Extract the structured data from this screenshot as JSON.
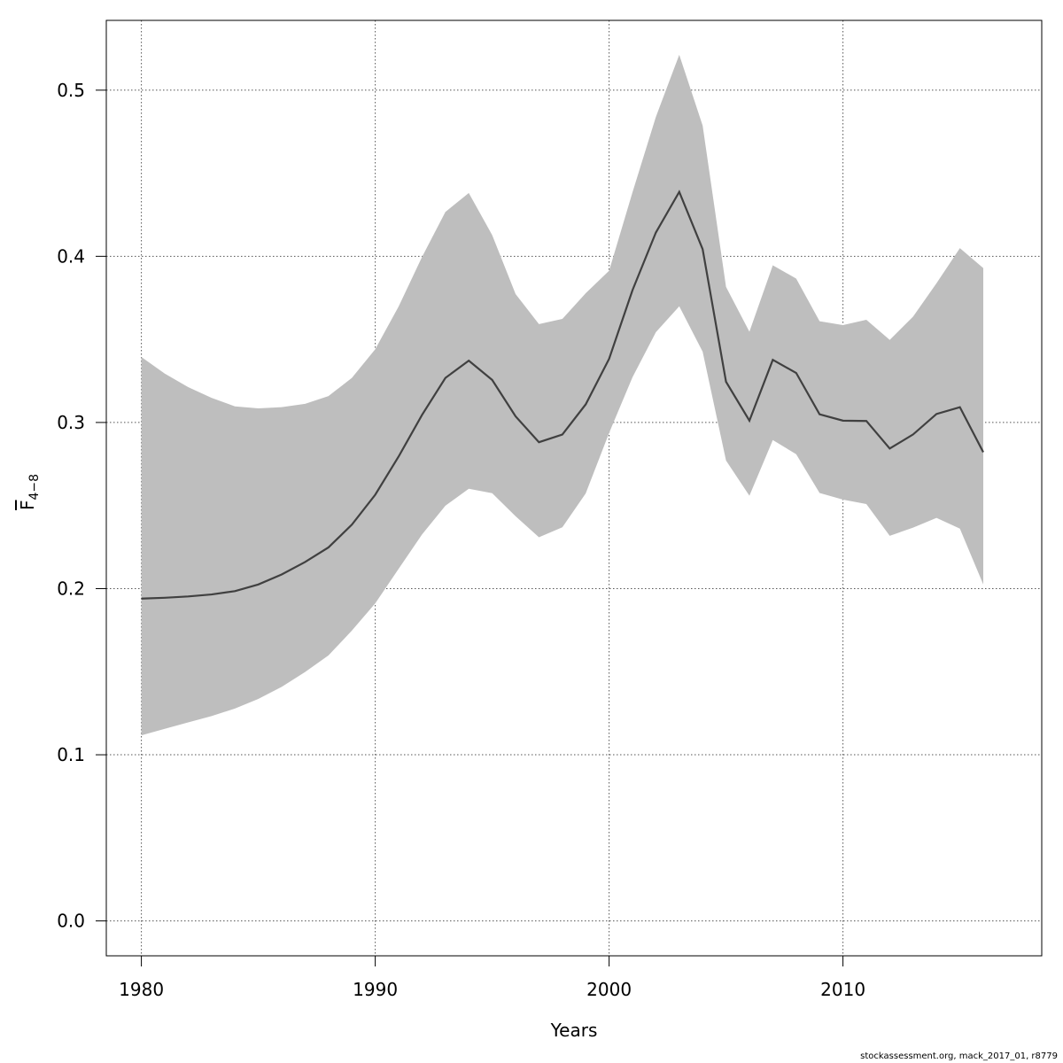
{
  "chart_data": {
    "type": "line",
    "title": "",
    "xlabel": "Years",
    "ylabel_base": "F",
    "ylabel_sub": "4−8",
    "xlim": [
      1978.5,
      2018.5
    ],
    "ylim": [
      -0.021,
      0.542
    ],
    "x_ticks": [
      1980,
      1990,
      2000,
      2010
    ],
    "y_ticks": [
      "0.0",
      "0.1",
      "0.2",
      "0.3",
      "0.4",
      "0.5"
    ],
    "grid": true,
    "colors": {
      "line": "#404040",
      "band": "#bebebe",
      "grid": "#555555"
    },
    "x": [
      1980,
      1981,
      1982,
      1983,
      1984,
      1985,
      1986,
      1987,
      1988,
      1989,
      1990,
      1991,
      1992,
      1993,
      1994,
      1995,
      1996,
      1997,
      1998,
      1999,
      2000,
      2001,
      2002,
      2003,
      2004,
      2005,
      2006,
      2007,
      2008,
      2009,
      2010,
      2011,
      2012,
      2013,
      2014,
      2015,
      2016
    ],
    "series": [
      {
        "values": [
          0.194,
          0.1945,
          0.1953,
          0.1965,
          0.1985,
          0.2025,
          0.2085,
          0.216,
          0.2248,
          0.2385,
          0.2565,
          0.2795,
          0.3045,
          0.3268,
          0.3372,
          0.3256,
          0.3037,
          0.2881,
          0.2927,
          0.3109,
          0.3383,
          0.3796,
          0.4143,
          0.4388,
          0.4043,
          0.3245,
          0.3011,
          0.3377,
          0.3298,
          0.3049,
          0.3011,
          0.3009,
          0.2843,
          0.2928,
          0.3051,
          0.3092,
          0.2821
        ]
      }
    ],
    "band": {
      "lower": [
        0.1117,
        0.1156,
        0.1195,
        0.1233,
        0.1278,
        0.1336,
        0.1409,
        0.1498,
        0.1598,
        0.1747,
        0.1911,
        0.2119,
        0.2326,
        0.2499,
        0.2601,
        0.2574,
        0.2436,
        0.2309,
        0.2369,
        0.2573,
        0.2937,
        0.3272,
        0.3543,
        0.3699,
        0.3426,
        0.2771,
        0.2559,
        0.2894,
        0.2809,
        0.2576,
        0.2536,
        0.2509,
        0.2318,
        0.2367,
        0.2426,
        0.2361,
        0.2025
      ],
      "upper": [
        0.3394,
        0.3294,
        0.3213,
        0.3148,
        0.3097,
        0.3085,
        0.3092,
        0.3112,
        0.3159,
        0.3268,
        0.3441,
        0.3698,
        0.3996,
        0.4267,
        0.4381,
        0.4128,
        0.3773,
        0.3592,
        0.3623,
        0.3778,
        0.3913,
        0.4385,
        0.4839,
        0.5213,
        0.4787,
        0.3816,
        0.3546,
        0.3946,
        0.3866,
        0.3609,
        0.3586,
        0.3618,
        0.3497,
        0.3637,
        0.3838,
        0.4049,
        0.3929
      ]
    }
  },
  "footer": "stockassessment.org, mack_2017_01, r8779"
}
